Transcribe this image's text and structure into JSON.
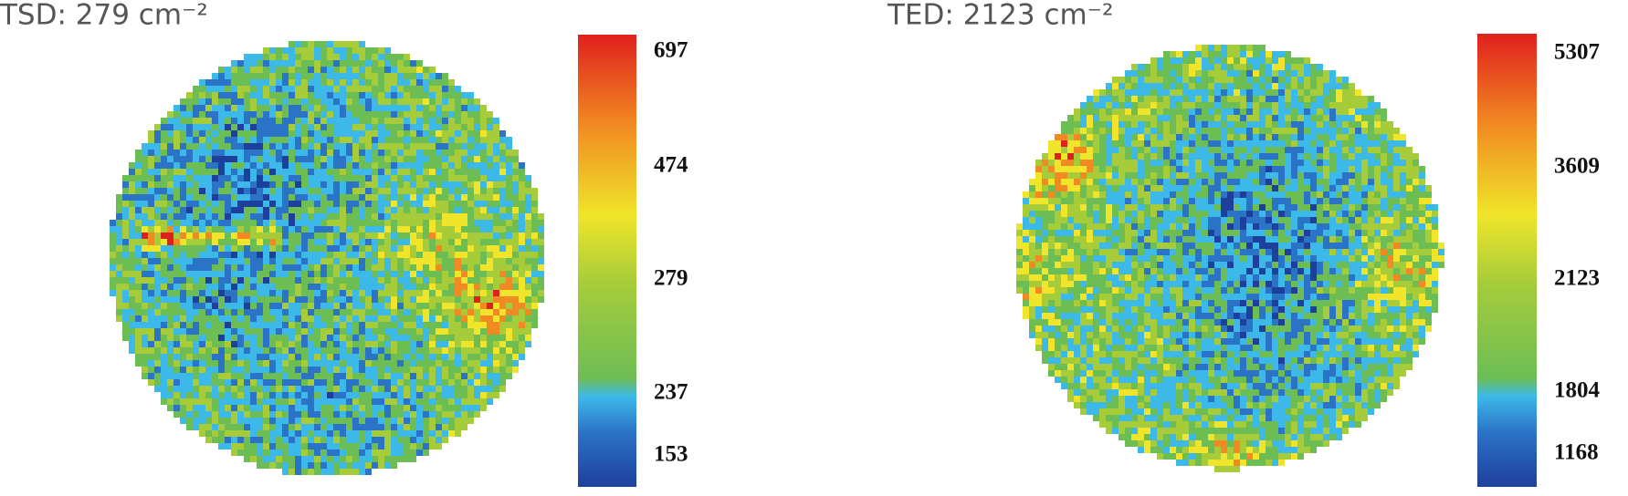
{
  "panels": [
    {
      "title": "TSD: 279 cm⁻²",
      "scale_labels": [
        "697",
        "474",
        "279",
        "237",
        "153"
      ]
    },
    {
      "title": "TED: 2123 cm⁻²",
      "scale_labels": [
        "5307",
        "3609",
        "2123",
        "1804",
        "1168"
      ]
    }
  ]
}
